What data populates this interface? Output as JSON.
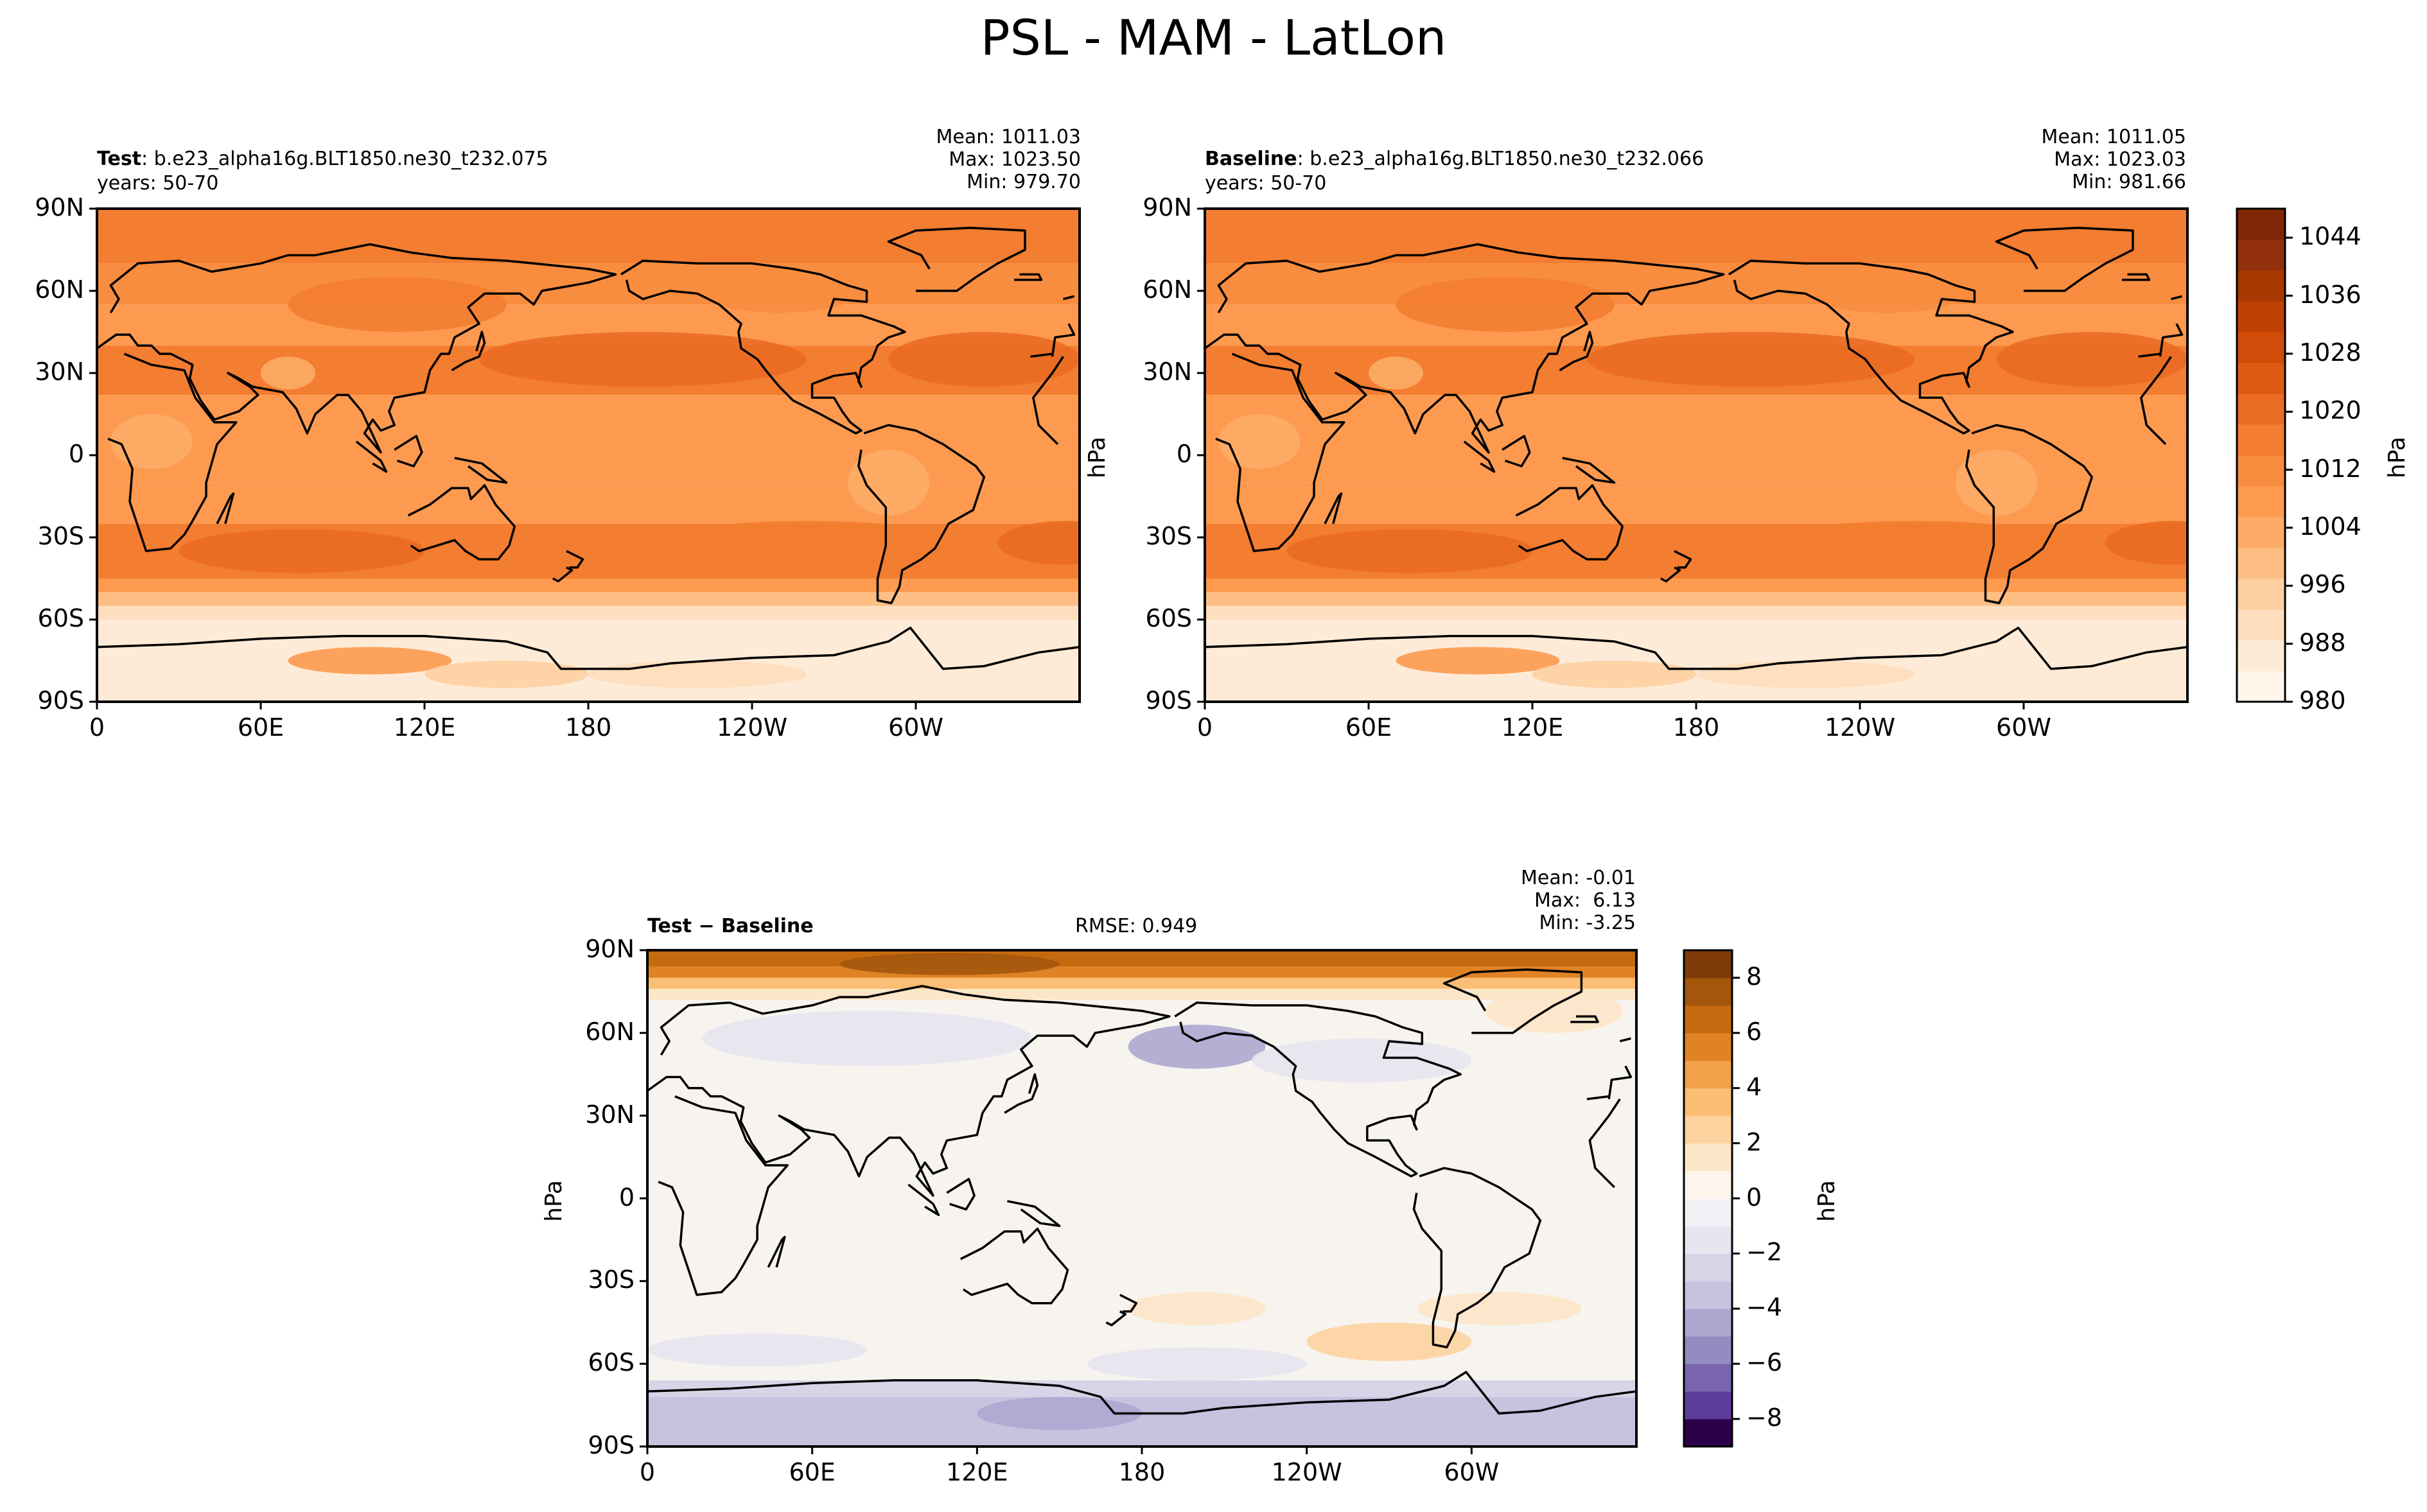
{
  "suptitle": "PSL - MAM - LatLon",
  "colors": {
    "orange_scale": [
      "#fff5eb",
      "#feebd7",
      "#fedebd",
      "#fdd0a2",
      "#fdbe84",
      "#fdac67",
      "#fd9a4f",
      "#f88c3f",
      "#f37d30",
      "#ea6b23",
      "#df5a12",
      "#d14c08",
      "#bf4204",
      "#a83902",
      "#91300a",
      "#7f2704"
    ],
    "diff_pos": [
      "#fdf5eb",
      "#fde6c8",
      "#fdd39f",
      "#fbbe74",
      "#f2a04a",
      "#e08325",
      "#c66a0f",
      "#a3560c",
      "#7f3b08"
    ],
    "diff_neg": [
      "#f2f2f6",
      "#e6e5f0",
      "#d6d5e8",
      "#c6c3df",
      "#aca8d0",
      "#928bc0",
      "#7865ad",
      "#5e3c99",
      "#2d004b"
    ],
    "coastline": "#000000"
  },
  "panels": {
    "test": {
      "label": "Test",
      "case": ": b.e23_alpha16g.BLT1850.ne30_t232.075",
      "years": "years: 50-70",
      "mean": "Mean: 1011.03",
      "max": "Max: 1023.50",
      "min": "Min: 979.70",
      "ylabel": "hPa"
    },
    "baseline": {
      "label": "Baseline",
      "case": ": b.e23_alpha16g.BLT1850.ne30_t232.066",
      "years": "years: 50-70",
      "mean": "Mean: 1011.05",
      "max": "Max: 1023.03",
      "min": "Min: 981.66"
    },
    "diff": {
      "label": "Test − Baseline",
      "rmse": "RMSE: 0.949",
      "mean": "Mean: -0.01",
      "max": "Max:  6.13",
      "min": "Min: -3.25",
      "ylabel": "hPa"
    }
  },
  "axes": {
    "lat_ticks": [
      "90N",
      "60N",
      "30N",
      "0",
      "30S",
      "60S",
      "90S"
    ],
    "lon_ticks": [
      "0",
      "60E",
      "120E",
      "180",
      "120W",
      "60W"
    ]
  },
  "colorbars": {
    "top": {
      "label": "hPa",
      "ticks": [
        "1044",
        "1036",
        "1028",
        "1020",
        "1012",
        "1004",
        "996",
        "988",
        "980"
      ],
      "range": [
        980,
        1048
      ]
    },
    "diff": {
      "label": "hPa",
      "ticks": [
        "8",
        "6",
        "4",
        "2",
        "0",
        "−2",
        "−4",
        "−6",
        "−8"
      ],
      "range": [
        -9,
        9
      ]
    }
  },
  "chart_data": [
    {
      "type": "heatmap",
      "title": "Test",
      "variable": "PSL",
      "season": "MAM",
      "units": "hPa",
      "x_range": [
        "0",
        "360"
      ],
      "y_range": [
        "90S",
        "90N"
      ],
      "mean": 1011.03,
      "max": 1023.5,
      "min": 979.7,
      "zonal_profile": {
        "lat": [
          90,
          75,
          60,
          45,
          35,
          20,
          0,
          -20,
          -35,
          -45,
          -55,
          -65,
          -75,
          -90
        ],
        "psl": [
          1014,
          1016,
          1016,
          1013,
          1019,
          1013,
          1010,
          1013,
          1020,
          1016,
          1004,
          988,
          990,
          994
        ]
      }
    },
    {
      "type": "heatmap",
      "title": "Baseline",
      "variable": "PSL",
      "season": "MAM",
      "units": "hPa",
      "mean": 1011.05,
      "max": 1023.03,
      "min": 981.66,
      "zonal_profile": {
        "lat": [
          90,
          75,
          60,
          45,
          35,
          20,
          0,
          -20,
          -35,
          -45,
          -55,
          -65,
          -75,
          -90
        ],
        "psl": [
          1012,
          1015,
          1016,
          1013,
          1019,
          1013,
          1010,
          1013,
          1020,
          1016,
          1004,
          988,
          990,
          994
        ]
      }
    },
    {
      "type": "heatmap",
      "title": "Test − Baseline",
      "units": "hPa",
      "rmse": 0.949,
      "mean": -0.01,
      "max": 6.13,
      "min": -3.25,
      "zonal_profile": {
        "lat": [
          90,
          80,
          70,
          55,
          30,
          0,
          -30,
          -45,
          -60,
          -70,
          -80,
          -90
        ],
        "diff": [
          6,
          3,
          0.5,
          -0.5,
          0,
          -0.2,
          0.2,
          0.6,
          0,
          -1.5,
          -2,
          -2
        ]
      }
    }
  ]
}
